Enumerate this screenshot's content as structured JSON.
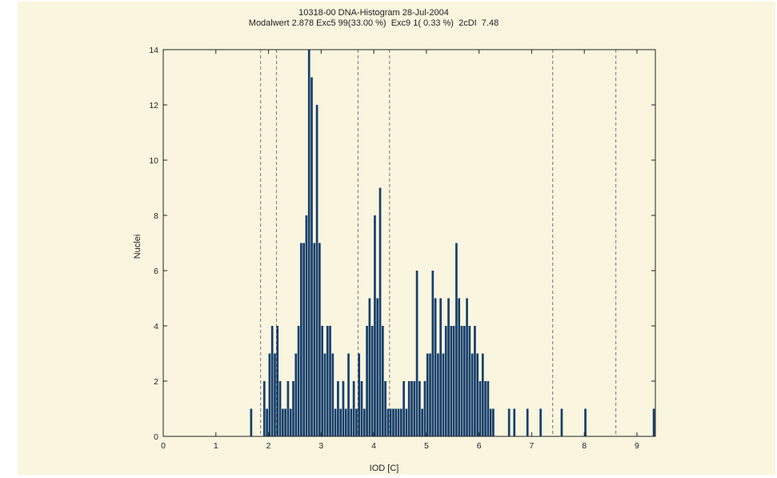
{
  "chart_data": {
    "type": "bar",
    "title": "10318-00 DNA-Histogram 28-Jul-2004",
    "subtitle": "Modalwert 2.878 Exc5 99(33.00 %)  Exc9 1( 0.33 %)  2cDI  7.48",
    "xlabel": "IOD [C]",
    "ylabel": "Nuclei",
    "xlim": [
      0,
      9.35
    ],
    "ylim": [
      0,
      14
    ],
    "xticks": [
      0,
      1,
      2,
      3,
      4,
      5,
      6,
      7,
      8,
      9
    ],
    "yticks": [
      0,
      2,
      4,
      6,
      8,
      10,
      12,
      14
    ],
    "grid": false,
    "bin_width": 0.05,
    "reference_lines": [
      1.85,
      2.15,
      3.7,
      4.3,
      7.4,
      8.6
    ],
    "bar_color": "#153e6b",
    "bars": [
      {
        "x": 1.675,
        "y": 1
      },
      {
        "x": 1.925,
        "y": 2
      },
      {
        "x": 1.975,
        "y": 1
      },
      {
        "x": 2.025,
        "y": 3
      },
      {
        "x": 2.075,
        "y": 4
      },
      {
        "x": 2.125,
        "y": 3
      },
      {
        "x": 2.175,
        "y": 4
      },
      {
        "x": 2.225,
        "y": 2
      },
      {
        "x": 2.275,
        "y": 1
      },
      {
        "x": 2.325,
        "y": 1
      },
      {
        "x": 2.375,
        "y": 2
      },
      {
        "x": 2.425,
        "y": 1
      },
      {
        "x": 2.475,
        "y": 2
      },
      {
        "x": 2.525,
        "y": 3
      },
      {
        "x": 2.575,
        "y": 4
      },
      {
        "x": 2.625,
        "y": 7
      },
      {
        "x": 2.675,
        "y": 7
      },
      {
        "x": 2.725,
        "y": 8
      },
      {
        "x": 2.775,
        "y": 14
      },
      {
        "x": 2.825,
        "y": 13
      },
      {
        "x": 2.875,
        "y": 7
      },
      {
        "x": 2.925,
        "y": 12
      },
      {
        "x": 2.975,
        "y": 7
      },
      {
        "x": 3.025,
        "y": 4
      },
      {
        "x": 3.075,
        "y": 3
      },
      {
        "x": 3.125,
        "y": 4
      },
      {
        "x": 3.175,
        "y": 4
      },
      {
        "x": 3.225,
        "y": 3
      },
      {
        "x": 3.275,
        "y": 1
      },
      {
        "x": 3.325,
        "y": 2
      },
      {
        "x": 3.375,
        "y": 1
      },
      {
        "x": 3.425,
        "y": 2
      },
      {
        "x": 3.475,
        "y": 1
      },
      {
        "x": 3.525,
        "y": 3
      },
      {
        "x": 3.575,
        "y": 1
      },
      {
        "x": 3.625,
        "y": 2
      },
      {
        "x": 3.675,
        "y": 1
      },
      {
        "x": 3.725,
        "y": 3
      },
      {
        "x": 3.775,
        "y": 2
      },
      {
        "x": 3.825,
        "y": 1
      },
      {
        "x": 3.875,
        "y": 4
      },
      {
        "x": 3.925,
        "y": 5
      },
      {
        "x": 3.975,
        "y": 4
      },
      {
        "x": 4.025,
        "y": 8
      },
      {
        "x": 4.075,
        "y": 5
      },
      {
        "x": 4.125,
        "y": 9
      },
      {
        "x": 4.175,
        "y": 4
      },
      {
        "x": 4.225,
        "y": 2
      },
      {
        "x": 4.275,
        "y": 1
      },
      {
        "x": 4.325,
        "y": 1
      },
      {
        "x": 4.375,
        "y": 1
      },
      {
        "x": 4.425,
        "y": 1
      },
      {
        "x": 4.475,
        "y": 1
      },
      {
        "x": 4.525,
        "y": 1
      },
      {
        "x": 4.575,
        "y": 2
      },
      {
        "x": 4.625,
        "y": 1
      },
      {
        "x": 4.675,
        "y": 2
      },
      {
        "x": 4.725,
        "y": 2
      },
      {
        "x": 4.775,
        "y": 2
      },
      {
        "x": 4.825,
        "y": 6
      },
      {
        "x": 4.875,
        "y": 2
      },
      {
        "x": 4.925,
        "y": 1
      },
      {
        "x": 4.975,
        "y": 2
      },
      {
        "x": 5.025,
        "y": 3
      },
      {
        "x": 5.075,
        "y": 3
      },
      {
        "x": 5.125,
        "y": 6
      },
      {
        "x": 5.175,
        "y": 5
      },
      {
        "x": 5.225,
        "y": 3
      },
      {
        "x": 5.275,
        "y": 5
      },
      {
        "x": 5.325,
        "y": 3
      },
      {
        "x": 5.375,
        "y": 4
      },
      {
        "x": 5.425,
        "y": 5
      },
      {
        "x": 5.475,
        "y": 4
      },
      {
        "x": 5.525,
        "y": 4
      },
      {
        "x": 5.575,
        "y": 7
      },
      {
        "x": 5.625,
        "y": 5
      },
      {
        "x": 5.675,
        "y": 4
      },
      {
        "x": 5.725,
        "y": 4
      },
      {
        "x": 5.775,
        "y": 5
      },
      {
        "x": 5.825,
        "y": 4
      },
      {
        "x": 5.875,
        "y": 3
      },
      {
        "x": 5.925,
        "y": 4
      },
      {
        "x": 5.975,
        "y": 3
      },
      {
        "x": 6.025,
        "y": 2
      },
      {
        "x": 6.075,
        "y": 3
      },
      {
        "x": 6.125,
        "y": 2
      },
      {
        "x": 6.175,
        "y": 2
      },
      {
        "x": 6.225,
        "y": 1
      },
      {
        "x": 6.275,
        "y": 1
      },
      {
        "x": 6.575,
        "y": 1
      },
      {
        "x": 6.675,
        "y": 1
      },
      {
        "x": 6.925,
        "y": 1
      },
      {
        "x": 7.175,
        "y": 1
      },
      {
        "x": 7.575,
        "y": 1
      },
      {
        "x": 8.025,
        "y": 1
      },
      {
        "x": 9.325,
        "y": 1
      }
    ]
  }
}
